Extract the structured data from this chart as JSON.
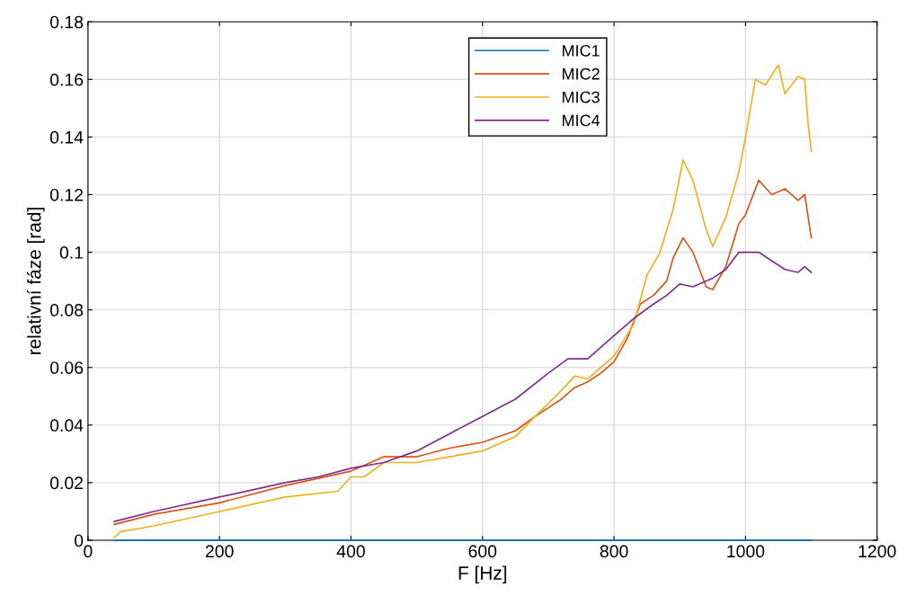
{
  "chart_data": {
    "type": "line",
    "xlabel": "F [Hz]",
    "ylabel": "relativní fáze [rad]",
    "xlim": [
      0,
      1200
    ],
    "xticks": [
      0,
      200,
      400,
      600,
      800,
      1000,
      1200
    ],
    "ylim": [
      0,
      0.18
    ],
    "yticks": [
      0,
      0.02,
      0.04,
      0.06,
      0.08,
      0.1,
      0.12,
      0.14,
      0.16,
      0.18
    ],
    "grid": true,
    "legend": "top",
    "series": [
      {
        "name": "MIC1",
        "color": "#0072bd",
        "x": [
          40,
          1100
        ],
        "values": [
          0,
          0
        ]
      },
      {
        "name": "MIC2",
        "color": "#d95319",
        "x": [
          40,
          100,
          200,
          300,
          400,
          450,
          500,
          550,
          600,
          650,
          680,
          700,
          720,
          740,
          760,
          780,
          800,
          820,
          840,
          860,
          880,
          890,
          905,
          920,
          940,
          950,
          970,
          990,
          1000,
          1020,
          1040,
          1060,
          1080,
          1090,
          1100
        ],
        "values": [
          0.0055,
          0.009,
          0.013,
          0.019,
          0.024,
          0.029,
          0.029,
          0.032,
          0.034,
          0.038,
          0.043,
          0.046,
          0.049,
          0.053,
          0.055,
          0.058,
          0.062,
          0.07,
          0.082,
          0.085,
          0.09,
          0.098,
          0.105,
          0.1,
          0.088,
          0.087,
          0.095,
          0.11,
          0.113,
          0.125,
          0.12,
          0.122,
          0.118,
          0.12,
          0.105
        ]
      },
      {
        "name": "MIC3",
        "color": "#edb120",
        "x": [
          40,
          50,
          100,
          200,
          300,
          380,
          400,
          420,
          450,
          500,
          550,
          600,
          650,
          680,
          720,
          740,
          760,
          800,
          830,
          850,
          870,
          890,
          905,
          920,
          940,
          950,
          970,
          990,
          1000,
          1015,
          1030,
          1050,
          1060,
          1080,
          1090,
          1095,
          1100
        ],
        "values": [
          0.001,
          0.003,
          0.005,
          0.01,
          0.015,
          0.017,
          0.022,
          0.022,
          0.027,
          0.027,
          0.029,
          0.031,
          0.036,
          0.043,
          0.052,
          0.057,
          0.056,
          0.064,
          0.075,
          0.092,
          0.1,
          0.115,
          0.132,
          0.125,
          0.108,
          0.102,
          0.112,
          0.128,
          0.14,
          0.16,
          0.158,
          0.165,
          0.155,
          0.161,
          0.16,
          0.145,
          0.135
        ]
      },
      {
        "name": "MIC4",
        "color": "#7e2f8e",
        "x": [
          40,
          100,
          200,
          300,
          350,
          400,
          450,
          500,
          550,
          600,
          650,
          700,
          730,
          760,
          800,
          830,
          860,
          880,
          900,
          920,
          950,
          970,
          990,
          1010,
          1020,
          1040,
          1060,
          1080,
          1090,
          1100
        ],
        "values": [
          0.0065,
          0.01,
          0.015,
          0.02,
          0.022,
          0.025,
          0.027,
          0.031,
          0.037,
          0.043,
          0.049,
          0.058,
          0.063,
          0.063,
          0.071,
          0.077,
          0.082,
          0.085,
          0.089,
          0.088,
          0.091,
          0.094,
          0.1,
          0.1,
          0.1,
          0.097,
          0.094,
          0.093,
          0.095,
          0.093
        ]
      }
    ]
  }
}
